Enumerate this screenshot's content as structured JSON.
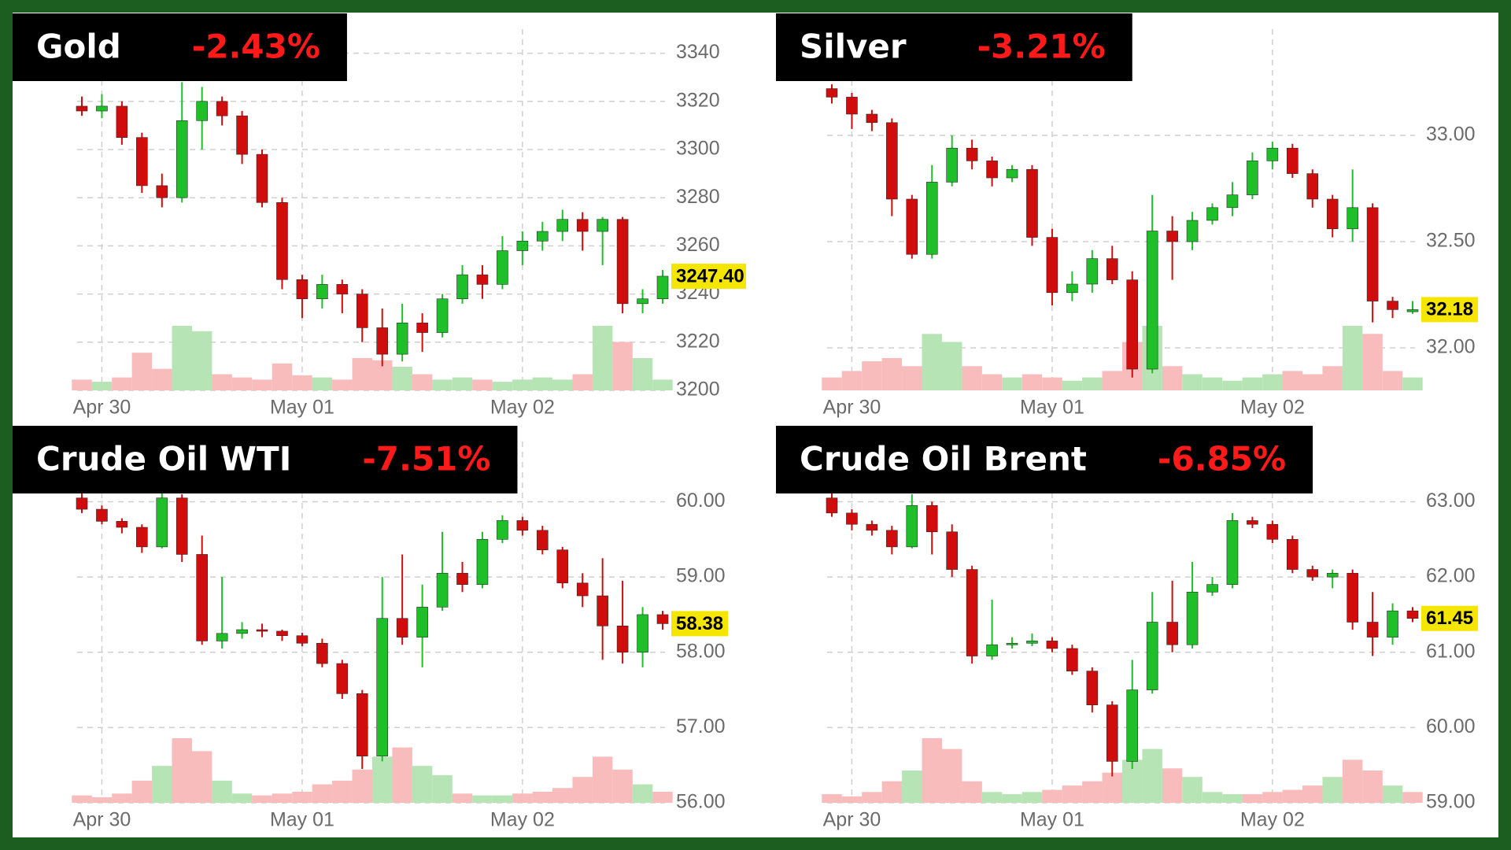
{
  "chart_data": [
    {
      "type": "candlestick",
      "title": "Gold",
      "change": "-2.43%",
      "categories": [
        null,
        "Apr 30",
        null,
        null,
        null,
        null,
        null,
        null,
        null,
        null,
        null,
        "May 01",
        null,
        null,
        null,
        null,
        null,
        null,
        null,
        null,
        null,
        null,
        "May 02",
        null,
        null,
        null,
        null,
        null,
        null,
        null
      ],
      "open": [
        3318,
        3316,
        3318,
        3305,
        3285,
        3280,
        3312,
        3320,
        3314,
        3298,
        3278,
        3246,
        3238,
        3244,
        3240,
        3226,
        3215,
        3228,
        3224,
        3238,
        3248,
        3244,
        3258,
        3262,
        3266,
        3271,
        3266,
        3271,
        3236,
        3238
      ],
      "high": [
        3322,
        3323,
        3320,
        3307,
        3290,
        3328,
        3326,
        3322,
        3316,
        3300,
        3280,
        3248,
        3248,
        3246,
        3242,
        3234,
        3236,
        3232,
        3240,
        3252,
        3252,
        3264,
        3266,
        3270,
        3275,
        3274,
        3272,
        3272,
        3242,
        3250
      ],
      "low": [
        3314,
        3313,
        3302,
        3282,
        3276,
        3278,
        3300,
        3310,
        3294,
        3276,
        3242,
        3230,
        3234,
        3232,
        3220,
        3210,
        3212,
        3216,
        3222,
        3236,
        3238,
        3242,
        3252,
        3258,
        3262,
        3258,
        3252,
        3232,
        3232,
        3236
      ],
      "close": [
        3316,
        3318,
        3305,
        3285,
        3280,
        3312,
        3320,
        3314,
        3298,
        3278,
        3246,
        3238,
        3244,
        3240,
        3226,
        3215,
        3228,
        3224,
        3238,
        3248,
        3244,
        3258,
        3262,
        3266,
        3271,
        3266,
        3271,
        3236,
        3238,
        3247.4
      ],
      "volume": [
        10,
        8,
        12,
        35,
        20,
        60,
        55,
        15,
        12,
        10,
        25,
        14,
        12,
        10,
        30,
        28,
        22,
        15,
        10,
        12,
        10,
        8,
        10,
        12,
        10,
        15,
        60,
        45,
        30,
        10
      ],
      "ylim": [
        3200,
        3350
      ],
      "yticks": [
        3200,
        3220,
        3240,
        3260,
        3280,
        3300,
        3320,
        3340
      ],
      "last_label": "3247.40",
      "grid": true,
      "up_color": "#1fbf2a",
      "down_color": "#d10c0c"
    },
    {
      "type": "candlestick",
      "title": "Silver",
      "change": "-3.21%",
      "categories": [
        null,
        "Apr 30",
        null,
        null,
        null,
        null,
        null,
        null,
        null,
        null,
        null,
        "May 01",
        null,
        null,
        null,
        null,
        null,
        null,
        null,
        null,
        null,
        null,
        "May 02",
        null,
        null,
        null,
        null,
        null,
        null,
        null
      ],
      "open": [
        33.22,
        33.18,
        33.1,
        33.06,
        32.7,
        32.44,
        32.78,
        32.94,
        32.88,
        32.8,
        32.84,
        32.52,
        32.26,
        32.3,
        32.42,
        32.32,
        31.9,
        32.55,
        32.5,
        32.6,
        32.66,
        32.72,
        32.88,
        32.94,
        32.82,
        32.7,
        32.56,
        32.66,
        32.22,
        32.17
      ],
      "high": [
        33.24,
        33.2,
        33.12,
        33.08,
        32.72,
        32.86,
        33.0,
        32.98,
        32.9,
        32.86,
        32.86,
        32.56,
        32.36,
        32.46,
        32.48,
        32.36,
        32.72,
        32.62,
        32.64,
        32.68,
        32.78,
        32.92,
        32.97,
        32.96,
        32.84,
        32.72,
        32.84,
        32.68,
        32.24,
        32.22
      ],
      "low": [
        33.15,
        33.03,
        33.02,
        32.62,
        32.42,
        32.42,
        32.76,
        32.84,
        32.76,
        32.78,
        32.48,
        32.2,
        32.22,
        32.26,
        32.3,
        31.86,
        31.88,
        32.32,
        32.46,
        32.58,
        32.62,
        32.7,
        32.84,
        32.8,
        32.66,
        32.52,
        32.5,
        32.12,
        32.14,
        32.16
      ],
      "close": [
        33.18,
        33.1,
        33.06,
        32.7,
        32.44,
        32.78,
        32.94,
        32.88,
        32.8,
        32.84,
        32.52,
        32.26,
        32.3,
        32.42,
        32.32,
        31.9,
        32.55,
        32.5,
        32.6,
        32.66,
        32.72,
        32.88,
        32.94,
        32.82,
        32.7,
        32.56,
        32.66,
        32.22,
        32.18,
        32.18
      ],
      "volume": [
        8,
        12,
        18,
        20,
        15,
        35,
        30,
        15,
        10,
        8,
        10,
        8,
        6,
        8,
        12,
        30,
        40,
        15,
        10,
        8,
        6,
        8,
        10,
        12,
        10,
        15,
        40,
        35,
        12,
        8
      ],
      "ylim": [
        31.8,
        33.5
      ],
      "yticks": [
        {
          "value": 32,
          "label": "32.00"
        },
        {
          "value": 32.5,
          "label": "32.50"
        },
        {
          "value": 33,
          "label": "33.00"
        }
      ],
      "last_label": "32.18",
      "grid": true,
      "up_color": "#1fbf2a",
      "down_color": "#d10c0c"
    },
    {
      "type": "candlestick",
      "title": "Crude Oil WTI",
      "change": "-7.51%",
      "categories": [
        null,
        "Apr 30",
        null,
        null,
        null,
        null,
        null,
        null,
        null,
        null,
        null,
        "May 01",
        null,
        null,
        null,
        null,
        null,
        null,
        null,
        null,
        null,
        null,
        "May 02",
        null,
        null,
        null,
        null,
        null,
        null,
        null
      ],
      "open": [
        60.05,
        59.9,
        59.74,
        59.66,
        59.4,
        60.05,
        59.3,
        58.15,
        58.25,
        58.3,
        58.28,
        58.22,
        58.12,
        57.85,
        57.45,
        56.62,
        58.45,
        58.2,
        58.6,
        59.05,
        58.9,
        59.5,
        59.75,
        59.62,
        59.36,
        58.92,
        58.75,
        58.35,
        58.0,
        58.5
      ],
      "high": [
        60.2,
        59.95,
        59.78,
        59.7,
        60.3,
        60.1,
        59.55,
        59.0,
        58.4,
        58.38,
        58.3,
        58.26,
        58.18,
        57.9,
        57.5,
        59.0,
        59.3,
        58.9,
        59.6,
        59.2,
        59.6,
        59.82,
        59.8,
        59.68,
        59.4,
        59.05,
        59.25,
        58.95,
        58.6,
        58.55
      ],
      "low": [
        59.85,
        59.7,
        59.58,
        59.32,
        59.38,
        59.2,
        58.1,
        58.05,
        58.18,
        58.2,
        58.15,
        58.08,
        57.8,
        57.38,
        56.45,
        56.55,
        58.1,
        57.8,
        58.55,
        58.8,
        58.85,
        59.45,
        59.55,
        59.3,
        58.85,
        58.6,
        57.9,
        57.85,
        57.8,
        58.3
      ],
      "close": [
        59.9,
        59.74,
        59.66,
        59.4,
        60.05,
        59.3,
        58.15,
        58.25,
        58.3,
        58.28,
        58.22,
        58.12,
        57.85,
        57.45,
        56.62,
        58.45,
        58.2,
        58.6,
        59.05,
        58.9,
        59.5,
        59.75,
        59.62,
        59.36,
        58.92,
        58.75,
        58.35,
        58.0,
        58.5,
        58.38
      ],
      "volume": [
        4,
        3,
        5,
        12,
        20,
        35,
        28,
        12,
        5,
        4,
        5,
        6,
        10,
        12,
        18,
        25,
        30,
        20,
        15,
        5,
        4,
        4,
        5,
        6,
        8,
        14,
        25,
        18,
        10,
        6
      ],
      "ylim": [
        56,
        60.8
      ],
      "yticks": [
        {
          "value": 56,
          "label": "56.00"
        },
        {
          "value": 57,
          "label": "57.00"
        },
        {
          "value": 58,
          "label": "58.00"
        },
        {
          "value": 59,
          "label": "59.00"
        },
        {
          "value": 60,
          "label": "60.00"
        }
      ],
      "last_label": "58.38",
      "grid": true,
      "up_color": "#1fbf2a",
      "down_color": "#d10c0c"
    },
    {
      "type": "candlestick",
      "title": "Crude Oil Brent",
      "change": "-6.85%",
      "categories": [
        null,
        "Apr 30",
        null,
        null,
        null,
        null,
        null,
        null,
        null,
        null,
        null,
        "May 01",
        null,
        null,
        null,
        null,
        null,
        null,
        null,
        null,
        null,
        null,
        "May 02",
        null,
        null,
        null,
        null,
        null,
        null,
        null
      ],
      "open": [
        63.05,
        62.85,
        62.7,
        62.62,
        62.4,
        62.95,
        62.6,
        62.1,
        60.95,
        61.1,
        61.12,
        61.15,
        61.05,
        60.75,
        60.3,
        59.55,
        60.5,
        61.4,
        61.1,
        61.8,
        61.9,
        62.75,
        62.7,
        62.5,
        62.1,
        62.0,
        62.05,
        61.4,
        61.2,
        61.55
      ],
      "high": [
        63.2,
        62.9,
        62.75,
        62.68,
        63.1,
        63.0,
        62.7,
        62.15,
        61.7,
        61.2,
        61.25,
        61.2,
        61.1,
        60.8,
        60.35,
        60.9,
        61.8,
        61.95,
        62.2,
        62.0,
        62.85,
        62.8,
        62.75,
        62.55,
        62.15,
        62.1,
        62.1,
        61.8,
        61.65,
        61.6
      ],
      "low": [
        62.8,
        62.62,
        62.55,
        62.3,
        62.38,
        62.3,
        62.0,
        60.85,
        60.9,
        61.05,
        61.08,
        61.0,
        60.7,
        60.2,
        59.35,
        59.45,
        60.45,
        61.0,
        61.05,
        61.75,
        61.85,
        62.65,
        62.45,
        62.05,
        61.95,
        61.85,
        61.3,
        60.95,
        61.1,
        61.4
      ],
      "close": [
        62.85,
        62.7,
        62.62,
        62.4,
        62.95,
        62.6,
        62.1,
        60.95,
        61.1,
        61.12,
        61.15,
        61.05,
        60.75,
        60.3,
        59.55,
        60.5,
        61.4,
        61.1,
        61.8,
        61.9,
        62.75,
        62.7,
        62.5,
        62.1,
        62.0,
        62.05,
        61.4,
        61.2,
        61.55,
        61.45
      ],
      "volume": [
        4,
        3,
        5,
        10,
        15,
        30,
        25,
        10,
        5,
        4,
        5,
        6,
        8,
        10,
        14,
        20,
        25,
        16,
        12,
        5,
        4,
        4,
        5,
        6,
        8,
        12,
        20,
        15,
        8,
        5
      ],
      "ylim": [
        59,
        63.8
      ],
      "yticks": [
        {
          "value": 59,
          "label": "59.00"
        },
        {
          "value": 60,
          "label": "60.00"
        },
        {
          "value": 61,
          "label": "61.00"
        },
        {
          "value": 62,
          "label": "62.00"
        },
        {
          "value": 63,
          "label": "63.00"
        }
      ],
      "last_label": "61.45",
      "grid": true,
      "up_color": "#1fbf2a",
      "down_color": "#d10c0c"
    }
  ]
}
